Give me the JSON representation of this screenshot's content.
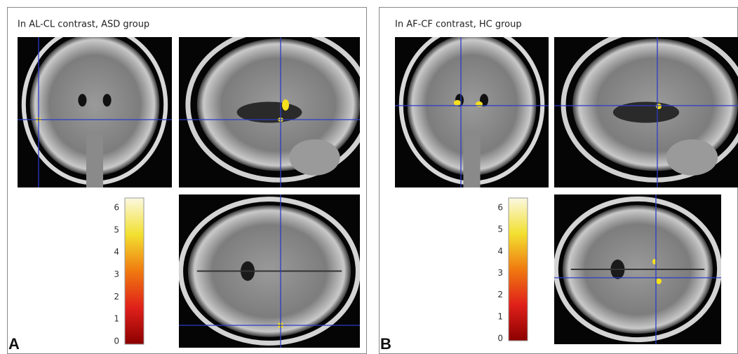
{
  "panels": [
    {
      "title": "In AL-CL contrast, ASD group",
      "label": "A",
      "colorbar": {
        "ticks": [
          0,
          1,
          2,
          3,
          4,
          5,
          6
        ]
      }
    },
    {
      "title": "In AF-CF contrast, HC group",
      "label": "B",
      "colorbar": {
        "ticks": [
          0,
          1,
          2,
          3,
          4,
          5,
          6
        ]
      }
    }
  ]
}
